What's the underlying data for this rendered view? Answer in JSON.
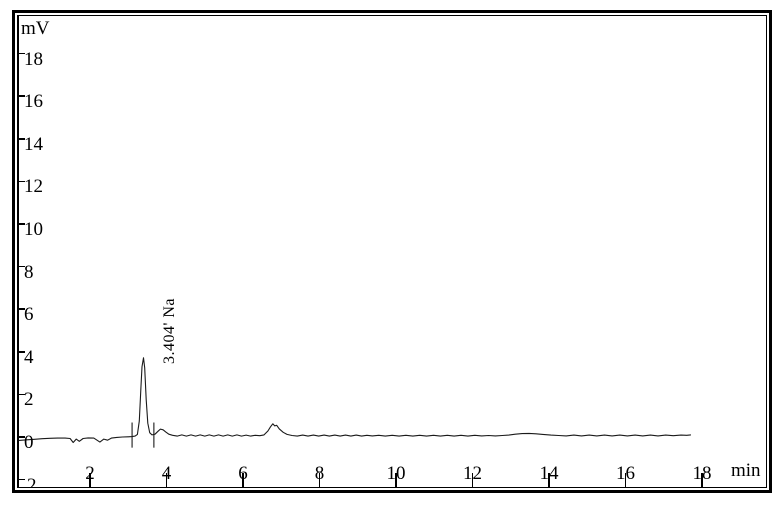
{
  "figure": {
    "y_axis_unit": "mV",
    "x_axis_unit": "min",
    "peak_annotation": "3.404'  Na",
    "clipped_y_label": "2"
  },
  "chart_data": {
    "type": "line",
    "title": "",
    "xlabel": "min",
    "ylabel": "mV",
    "grid": false,
    "legend": false,
    "x_ticks": [
      2,
      4,
      6,
      8,
      10,
      12,
      14,
      16,
      18
    ],
    "y_ticks": [
      18,
      16,
      14,
      12,
      10,
      8,
      6,
      4,
      2,
      0
    ],
    "y_tick_marks": [
      18,
      16,
      14,
      12,
      10,
      8,
      6,
      4,
      2,
      0,
      -2
    ],
    "xlim": [
      0,
      19.7
    ],
    "ylim": [
      -2.4,
      19.8
    ],
    "peaks": [
      {
        "retention_min": 3.404,
        "label": "Na",
        "height_mV": 3.72
      }
    ],
    "integration_marks_min": [
      3.1,
      3.67
    ],
    "integration_mark_mv_span": [
      -0.5,
      0.68
    ],
    "trace": [
      [
        0.15,
        -0.16
      ],
      [
        0.35,
        -0.13
      ],
      [
        0.55,
        -0.11
      ],
      [
        0.75,
        -0.08
      ],
      [
        0.95,
        -0.06
      ],
      [
        1.15,
        -0.05
      ],
      [
        1.35,
        -0.05
      ],
      [
        1.48,
        -0.07
      ],
      [
        1.56,
        -0.26
      ],
      [
        1.64,
        -0.1
      ],
      [
        1.72,
        -0.2
      ],
      [
        1.82,
        -0.07
      ],
      [
        1.95,
        -0.04
      ],
      [
        2.1,
        -0.05
      ],
      [
        2.26,
        -0.24
      ],
      [
        2.36,
        -0.1
      ],
      [
        2.46,
        -0.15
      ],
      [
        2.56,
        -0.05
      ],
      [
        2.7,
        -0.02
      ],
      [
        2.85,
        0.0
      ],
      [
        3.0,
        0.01
      ],
      [
        3.1,
        0.02
      ],
      [
        3.18,
        0.04
      ],
      [
        3.24,
        0.12
      ],
      [
        3.29,
        0.75
      ],
      [
        3.33,
        2.3
      ],
      [
        3.36,
        3.3
      ],
      [
        3.4,
        3.72
      ],
      [
        3.43,
        3.25
      ],
      [
        3.47,
        1.75
      ],
      [
        3.51,
        0.65
      ],
      [
        3.56,
        0.2
      ],
      [
        3.62,
        0.1
      ],
      [
        3.7,
        0.13
      ],
      [
        3.78,
        0.27
      ],
      [
        3.84,
        0.37
      ],
      [
        3.91,
        0.34
      ],
      [
        3.98,
        0.24
      ],
      [
        4.06,
        0.13
      ],
      [
        4.16,
        0.08
      ],
      [
        4.28,
        0.04
      ],
      [
        4.4,
        0.1
      ],
      [
        4.52,
        0.04
      ],
      [
        4.64,
        0.1
      ],
      [
        4.76,
        0.04
      ],
      [
        4.88,
        0.1
      ],
      [
        5.0,
        0.04
      ],
      [
        5.12,
        0.1
      ],
      [
        5.24,
        0.04
      ],
      [
        5.36,
        0.1
      ],
      [
        5.48,
        0.04
      ],
      [
        5.6,
        0.1
      ],
      [
        5.72,
        0.04
      ],
      [
        5.84,
        0.1
      ],
      [
        5.96,
        0.04
      ],
      [
        6.08,
        0.09
      ],
      [
        6.2,
        0.04
      ],
      [
        6.32,
        0.08
      ],
      [
        6.44,
        0.06
      ],
      [
        6.55,
        0.1
      ],
      [
        6.65,
        0.28
      ],
      [
        6.72,
        0.48
      ],
      [
        6.78,
        0.62
      ],
      [
        6.83,
        0.52
      ],
      [
        6.88,
        0.55
      ],
      [
        6.95,
        0.38
      ],
      [
        7.05,
        0.22
      ],
      [
        7.15,
        0.12
      ],
      [
        7.28,
        0.07
      ],
      [
        7.42,
        0.04
      ],
      [
        7.56,
        0.09
      ],
      [
        7.7,
        0.04
      ],
      [
        7.84,
        0.09
      ],
      [
        7.98,
        0.04
      ],
      [
        8.12,
        0.09
      ],
      [
        8.26,
        0.04
      ],
      [
        8.4,
        0.09
      ],
      [
        8.54,
        0.04
      ],
      [
        8.68,
        0.09
      ],
      [
        8.82,
        0.04
      ],
      [
        8.96,
        0.09
      ],
      [
        9.1,
        0.04
      ],
      [
        9.24,
        0.08
      ],
      [
        9.38,
        0.05
      ],
      [
        9.55,
        0.08
      ],
      [
        9.72,
        0.04
      ],
      [
        9.9,
        0.08
      ],
      [
        10.08,
        0.04
      ],
      [
        10.26,
        0.08
      ],
      [
        10.44,
        0.04
      ],
      [
        10.62,
        0.08
      ],
      [
        10.8,
        0.04
      ],
      [
        10.98,
        0.08
      ],
      [
        11.16,
        0.04
      ],
      [
        11.34,
        0.08
      ],
      [
        11.52,
        0.04
      ],
      [
        11.7,
        0.08
      ],
      [
        11.88,
        0.04
      ],
      [
        12.06,
        0.08
      ],
      [
        12.24,
        0.05
      ],
      [
        12.42,
        0.07
      ],
      [
        12.6,
        0.05
      ],
      [
        12.78,
        0.07
      ],
      [
        12.95,
        0.09
      ],
      [
        13.12,
        0.13
      ],
      [
        13.3,
        0.16
      ],
      [
        13.48,
        0.17
      ],
      [
        13.66,
        0.15
      ],
      [
        13.84,
        0.12
      ],
      [
        14.05,
        0.09
      ],
      [
        14.25,
        0.07
      ],
      [
        14.45,
        0.05
      ],
      [
        14.65,
        0.09
      ],
      [
        14.85,
        0.05
      ],
      [
        15.05,
        0.09
      ],
      [
        15.25,
        0.05
      ],
      [
        15.45,
        0.09
      ],
      [
        15.65,
        0.05
      ],
      [
        15.85,
        0.09
      ],
      [
        16.05,
        0.05
      ],
      [
        16.25,
        0.09
      ],
      [
        16.45,
        0.05
      ],
      [
        16.65,
        0.09
      ],
      [
        16.85,
        0.05
      ],
      [
        17.05,
        0.09
      ],
      [
        17.25,
        0.06
      ],
      [
        17.45,
        0.09
      ],
      [
        17.6,
        0.08
      ],
      [
        17.7,
        0.1
      ]
    ]
  }
}
